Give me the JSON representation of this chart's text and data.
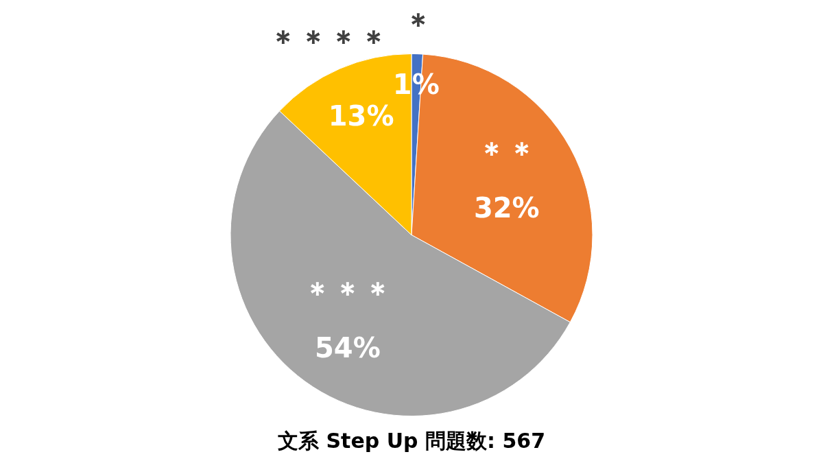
{
  "chart_data": {
    "type": "pie",
    "title": "文系 Step Up 問題数: 567",
    "categories": [
      "＊",
      "＊＊",
      "＊＊＊",
      "＊＊＊＊"
    ],
    "values": [
      1,
      32,
      54,
      13
    ],
    "colors": [
      "#4472c4",
      "#ed7d31",
      "#a5a5a5",
      "#ffc000"
    ],
    "value_labels": [
      "1%",
      "32%",
      "54%",
      "13%"
    ],
    "legend": false
  }
}
